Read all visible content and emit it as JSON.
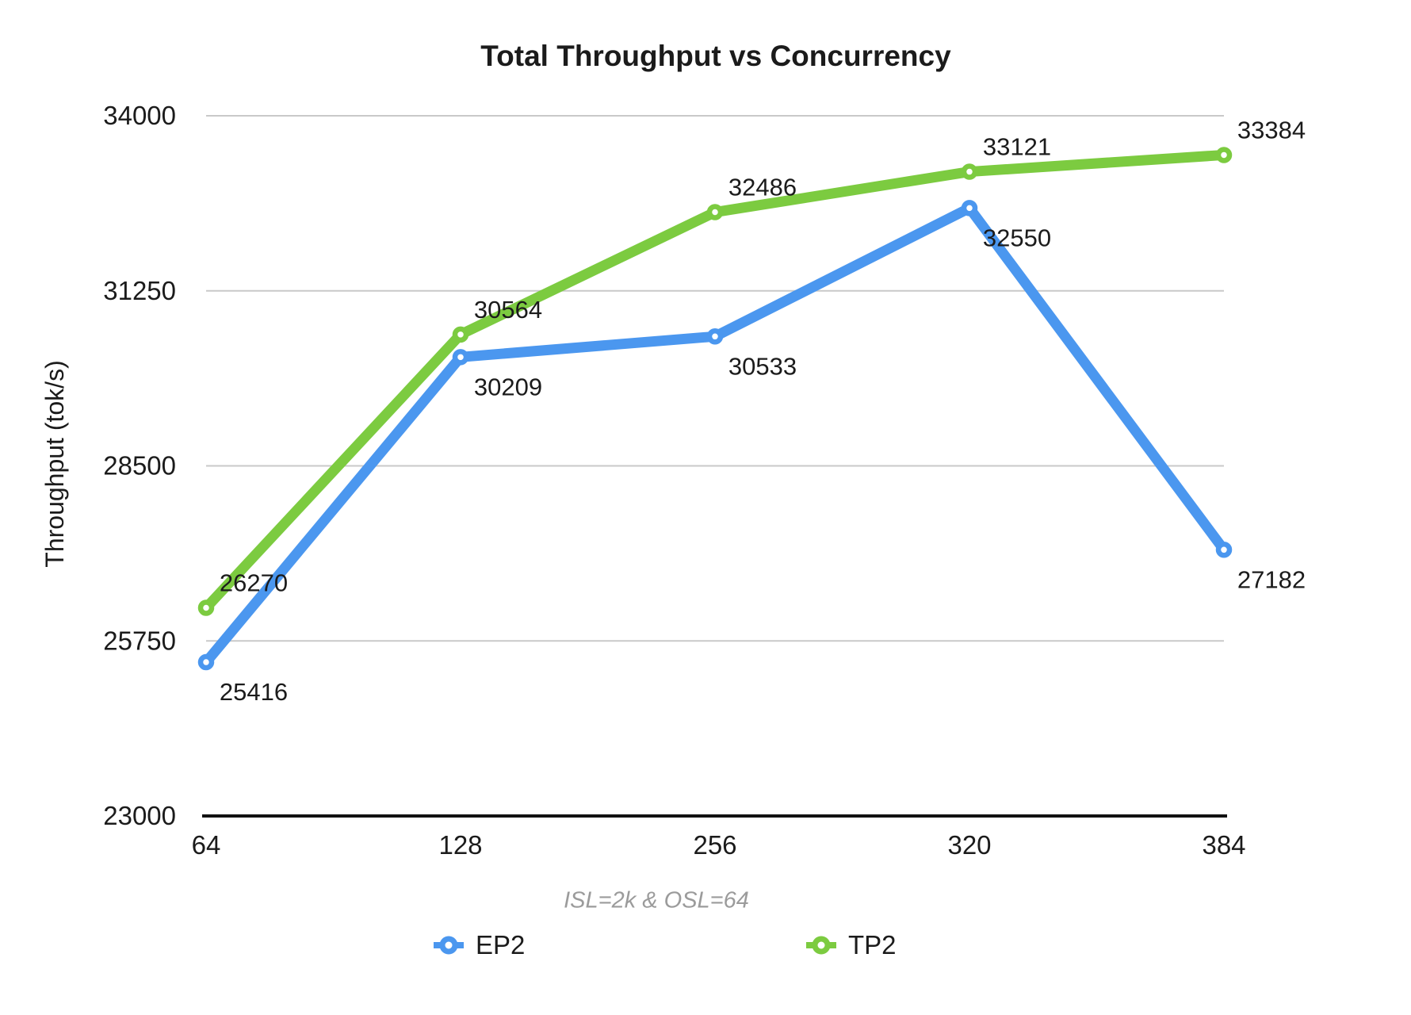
{
  "chart_data": {
    "type": "line",
    "title": "Total Throughput vs Concurrency",
    "subtitle": "ISL=2k & OSL=64",
    "xlabel": "",
    "ylabel": "Throughput (tok/s)",
    "categories": [
      "64",
      "128",
      "256",
      "320",
      "384"
    ],
    "y_ticks": [
      23000,
      25750,
      28500,
      31250,
      34000
    ],
    "ylim": [
      23000,
      34000
    ],
    "grid": "horizontal",
    "legend_position": "bottom",
    "series": [
      {
        "name": "EP2",
        "color": "#4B97EF",
        "values": [
          25416,
          30209,
          30533,
          32550,
          27182
        ],
        "label_position": "below"
      },
      {
        "name": "TP2",
        "color": "#7CCB40",
        "values": [
          26270,
          30564,
          32486,
          33121,
          33384
        ],
        "label_position": "above"
      }
    ],
    "colors": {
      "grid": "#C9C9C9",
      "axis": "#111111",
      "text": "#1B1B1B",
      "subtitle": "#9B9B9B"
    }
  }
}
